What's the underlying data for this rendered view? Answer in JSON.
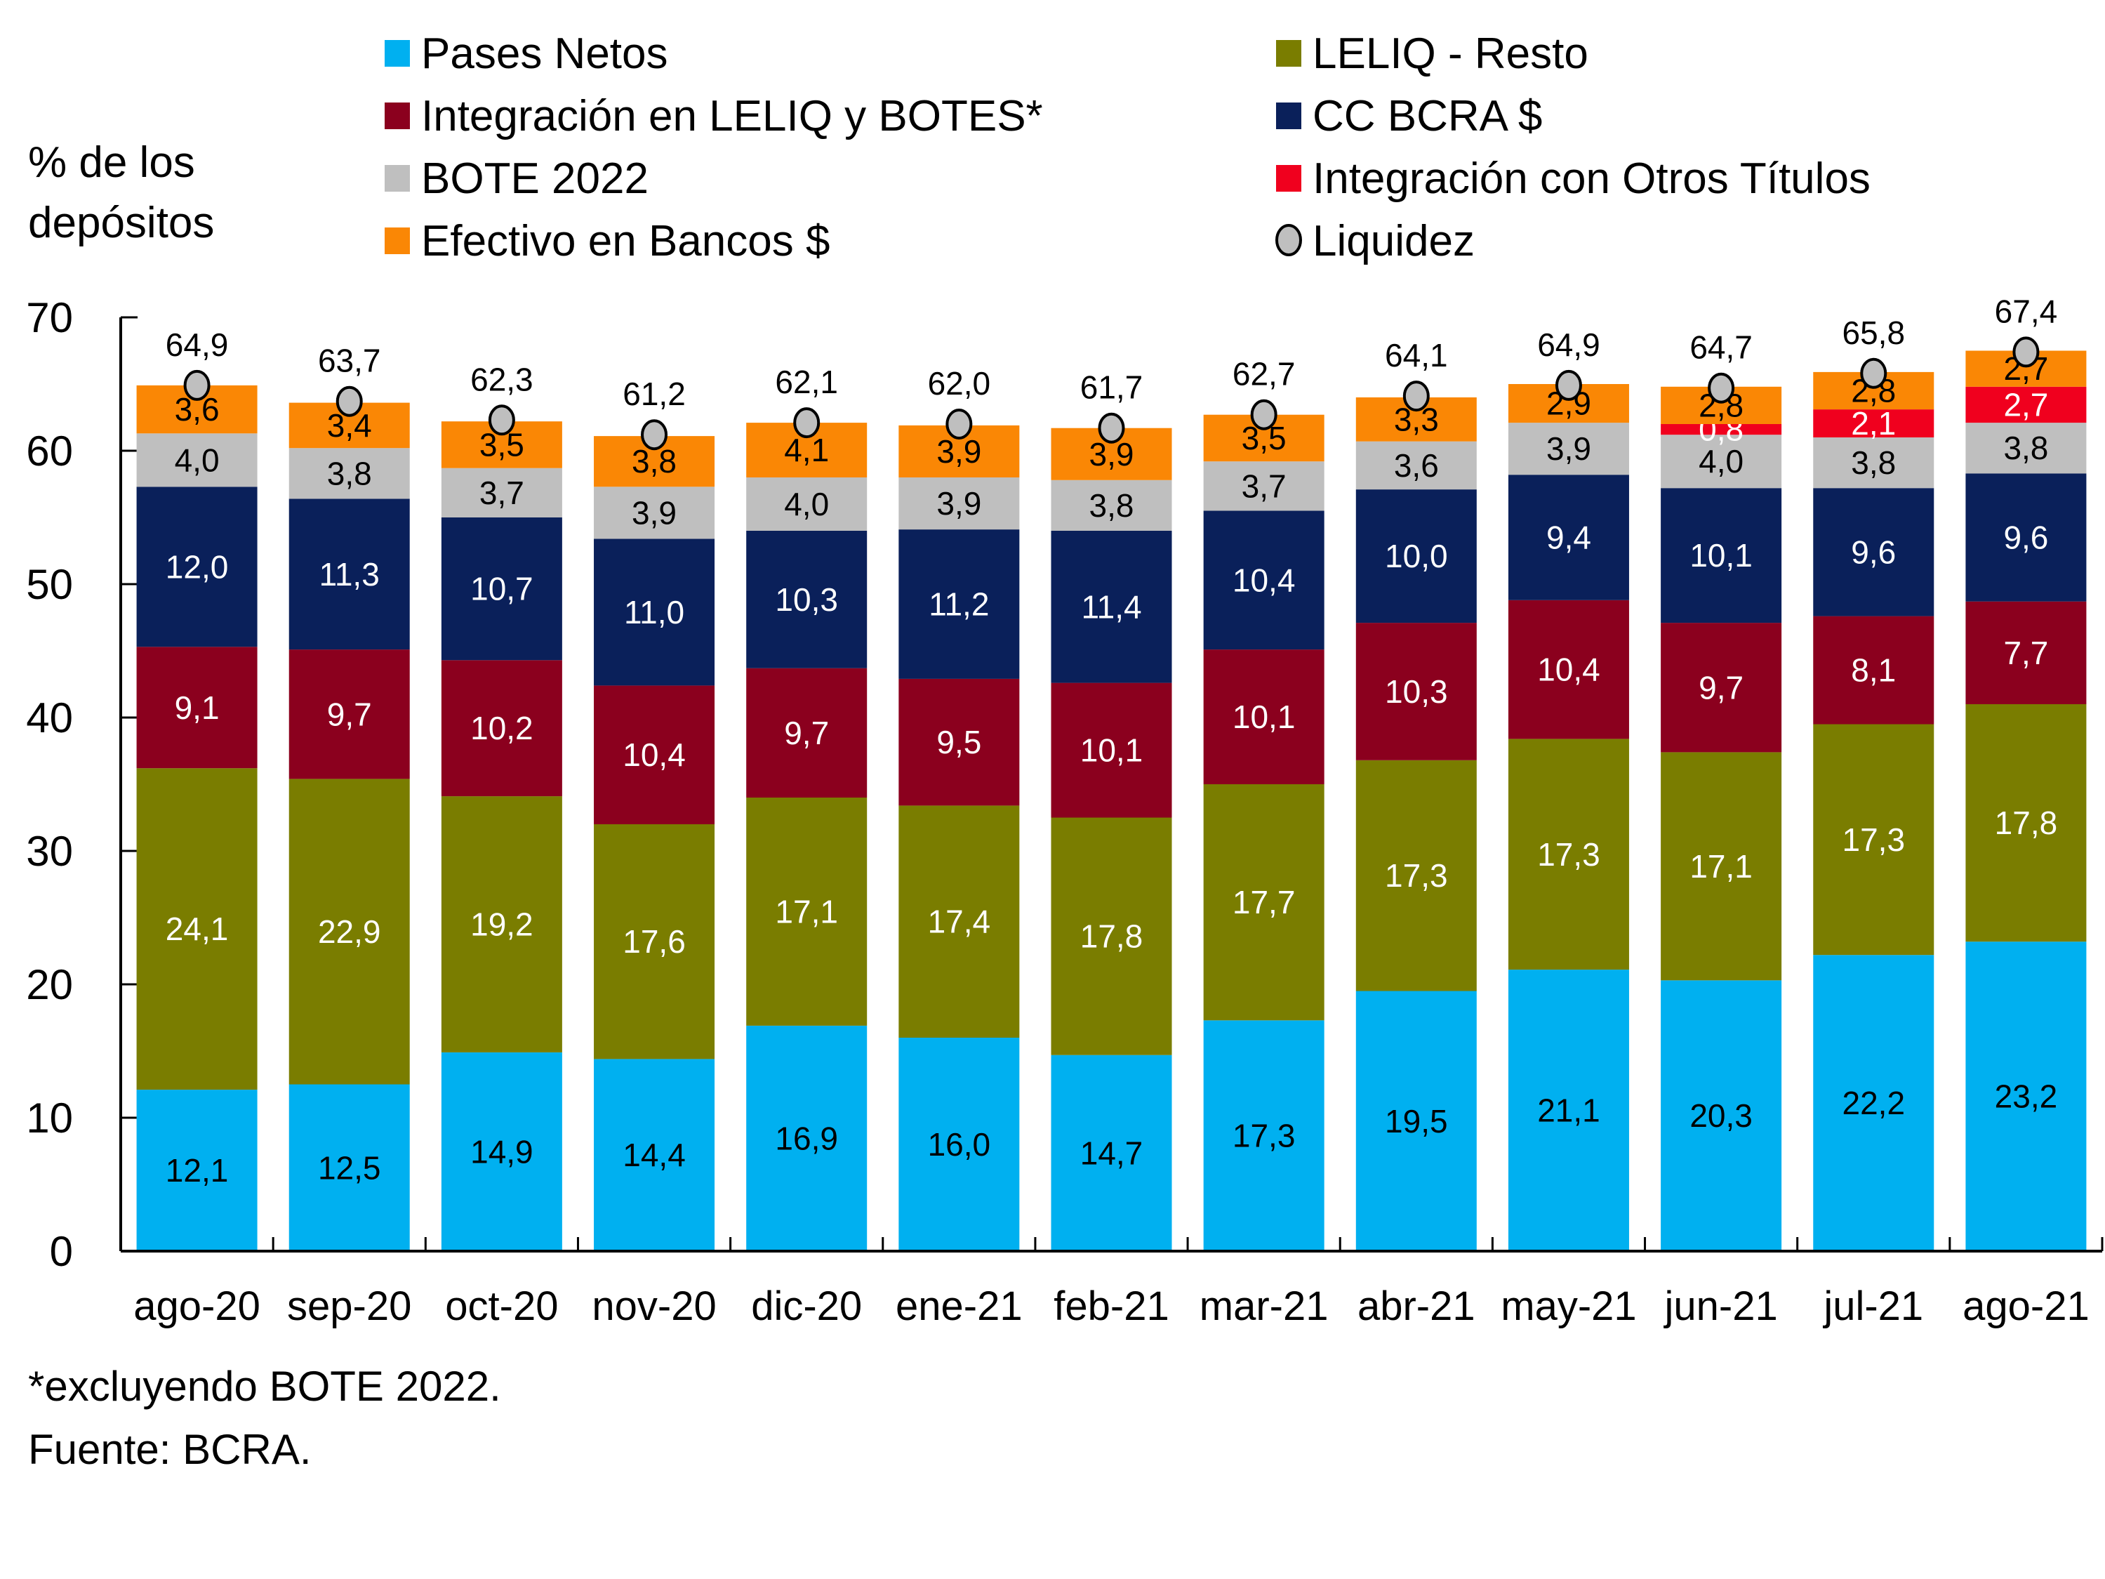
{
  "chart_data": {
    "type": "bar",
    "stacked": true,
    "title": "",
    "ylabel": "% de los depósitos",
    "ylabel_lines": [
      "% de los",
      "depósitos"
    ],
    "xlabel": "",
    "ylim": [
      0,
      70
    ],
    "yticks": [
      0,
      10,
      20,
      30,
      40,
      50,
      60,
      70
    ],
    "grid": false,
    "legend_position": "top",
    "categories": [
      "ago-20",
      "sep-20",
      "oct-20",
      "nov-20",
      "dic-20",
      "ene-21",
      "feb-21",
      "mar-21",
      "abr-21",
      "may-21",
      "jun-21",
      "jul-21",
      "ago-21"
    ],
    "series": [
      {
        "name": "Pases Netos",
        "color": "#00B0F0",
        "label_color": "#000000",
        "values": [
          12.1,
          12.5,
          14.9,
          14.4,
          16.9,
          16.0,
          14.7,
          17.3,
          19.5,
          21.1,
          20.3,
          22.2,
          23.2
        ]
      },
      {
        "name": "LELIQ - Resto",
        "color": "#7A7D00",
        "label_color": "#FFFFFF",
        "values": [
          24.1,
          22.9,
          19.2,
          17.6,
          17.1,
          17.4,
          17.8,
          17.7,
          17.3,
          17.3,
          17.1,
          17.3,
          17.8
        ]
      },
      {
        "name": "Integración en LELIQ y BOTES*",
        "color": "#8B001E",
        "label_color": "#FFFFFF",
        "values": [
          9.1,
          9.7,
          10.2,
          10.4,
          9.7,
          9.5,
          10.1,
          10.1,
          10.3,
          10.4,
          9.7,
          8.1,
          7.7
        ]
      },
      {
        "name": "CC BCRA $",
        "color": "#0A205A",
        "label_color": "#FFFFFF",
        "values": [
          12.0,
          11.3,
          10.7,
          11.0,
          10.3,
          11.2,
          11.4,
          10.4,
          10.0,
          9.4,
          10.1,
          9.6,
          9.6
        ]
      },
      {
        "name": "BOTE 2022",
        "color": "#BFBFBF",
        "label_color": "#000000",
        "values": [
          4.0,
          3.8,
          3.7,
          3.9,
          4.0,
          3.9,
          3.8,
          3.7,
          3.6,
          3.9,
          4.0,
          3.8,
          3.8
        ]
      },
      {
        "name": "Integración con Otros Títulos",
        "color": "#F0001E",
        "label_color": "#FFFFFF",
        "values": [
          null,
          null,
          null,
          null,
          null,
          null,
          null,
          null,
          null,
          null,
          0.8,
          2.1,
          2.7
        ]
      },
      {
        "name": "Efectivo en Bancos $",
        "color": "#FA8705",
        "label_color": "#000000",
        "values": [
          3.6,
          3.4,
          3.5,
          3.8,
          4.1,
          3.9,
          3.9,
          3.5,
          3.3,
          2.9,
          2.8,
          2.8,
          2.7
        ]
      }
    ],
    "markers": {
      "name": "Liquidez",
      "type": "scatter",
      "color": "#BFBFBF",
      "edge_color": "#000000",
      "values": [
        64.9,
        63.7,
        62.3,
        61.2,
        62.1,
        62.0,
        61.7,
        62.7,
        64.1,
        64.9,
        64.7,
        65.8,
        67.4
      ]
    },
    "decimal_separator": ",",
    "legend": [
      {
        "label": "Pases Netos",
        "color": "#00B0F0",
        "shape": "square"
      },
      {
        "label": "LELIQ - Resto",
        "color": "#7A7D00",
        "shape": "square"
      },
      {
        "label": "Integración en LELIQ y BOTES*",
        "color": "#8B001E",
        "shape": "square"
      },
      {
        "label": "CC BCRA $",
        "color": "#0A205A",
        "shape": "square"
      },
      {
        "label": "BOTE 2022",
        "color": "#BFBFBF",
        "shape": "square"
      },
      {
        "label": "Integración con Otros Títulos",
        "color": "#F0001E",
        "shape": "square"
      },
      {
        "label": "Efectivo en Bancos $",
        "color": "#FA8705",
        "shape": "square"
      },
      {
        "label": "Liquidez",
        "color": "#BFBFBF",
        "shape": "circle"
      }
    ]
  },
  "notes": {
    "footnote": "*excluyendo BOTE 2022.",
    "source": "Fuente: BCRA."
  }
}
